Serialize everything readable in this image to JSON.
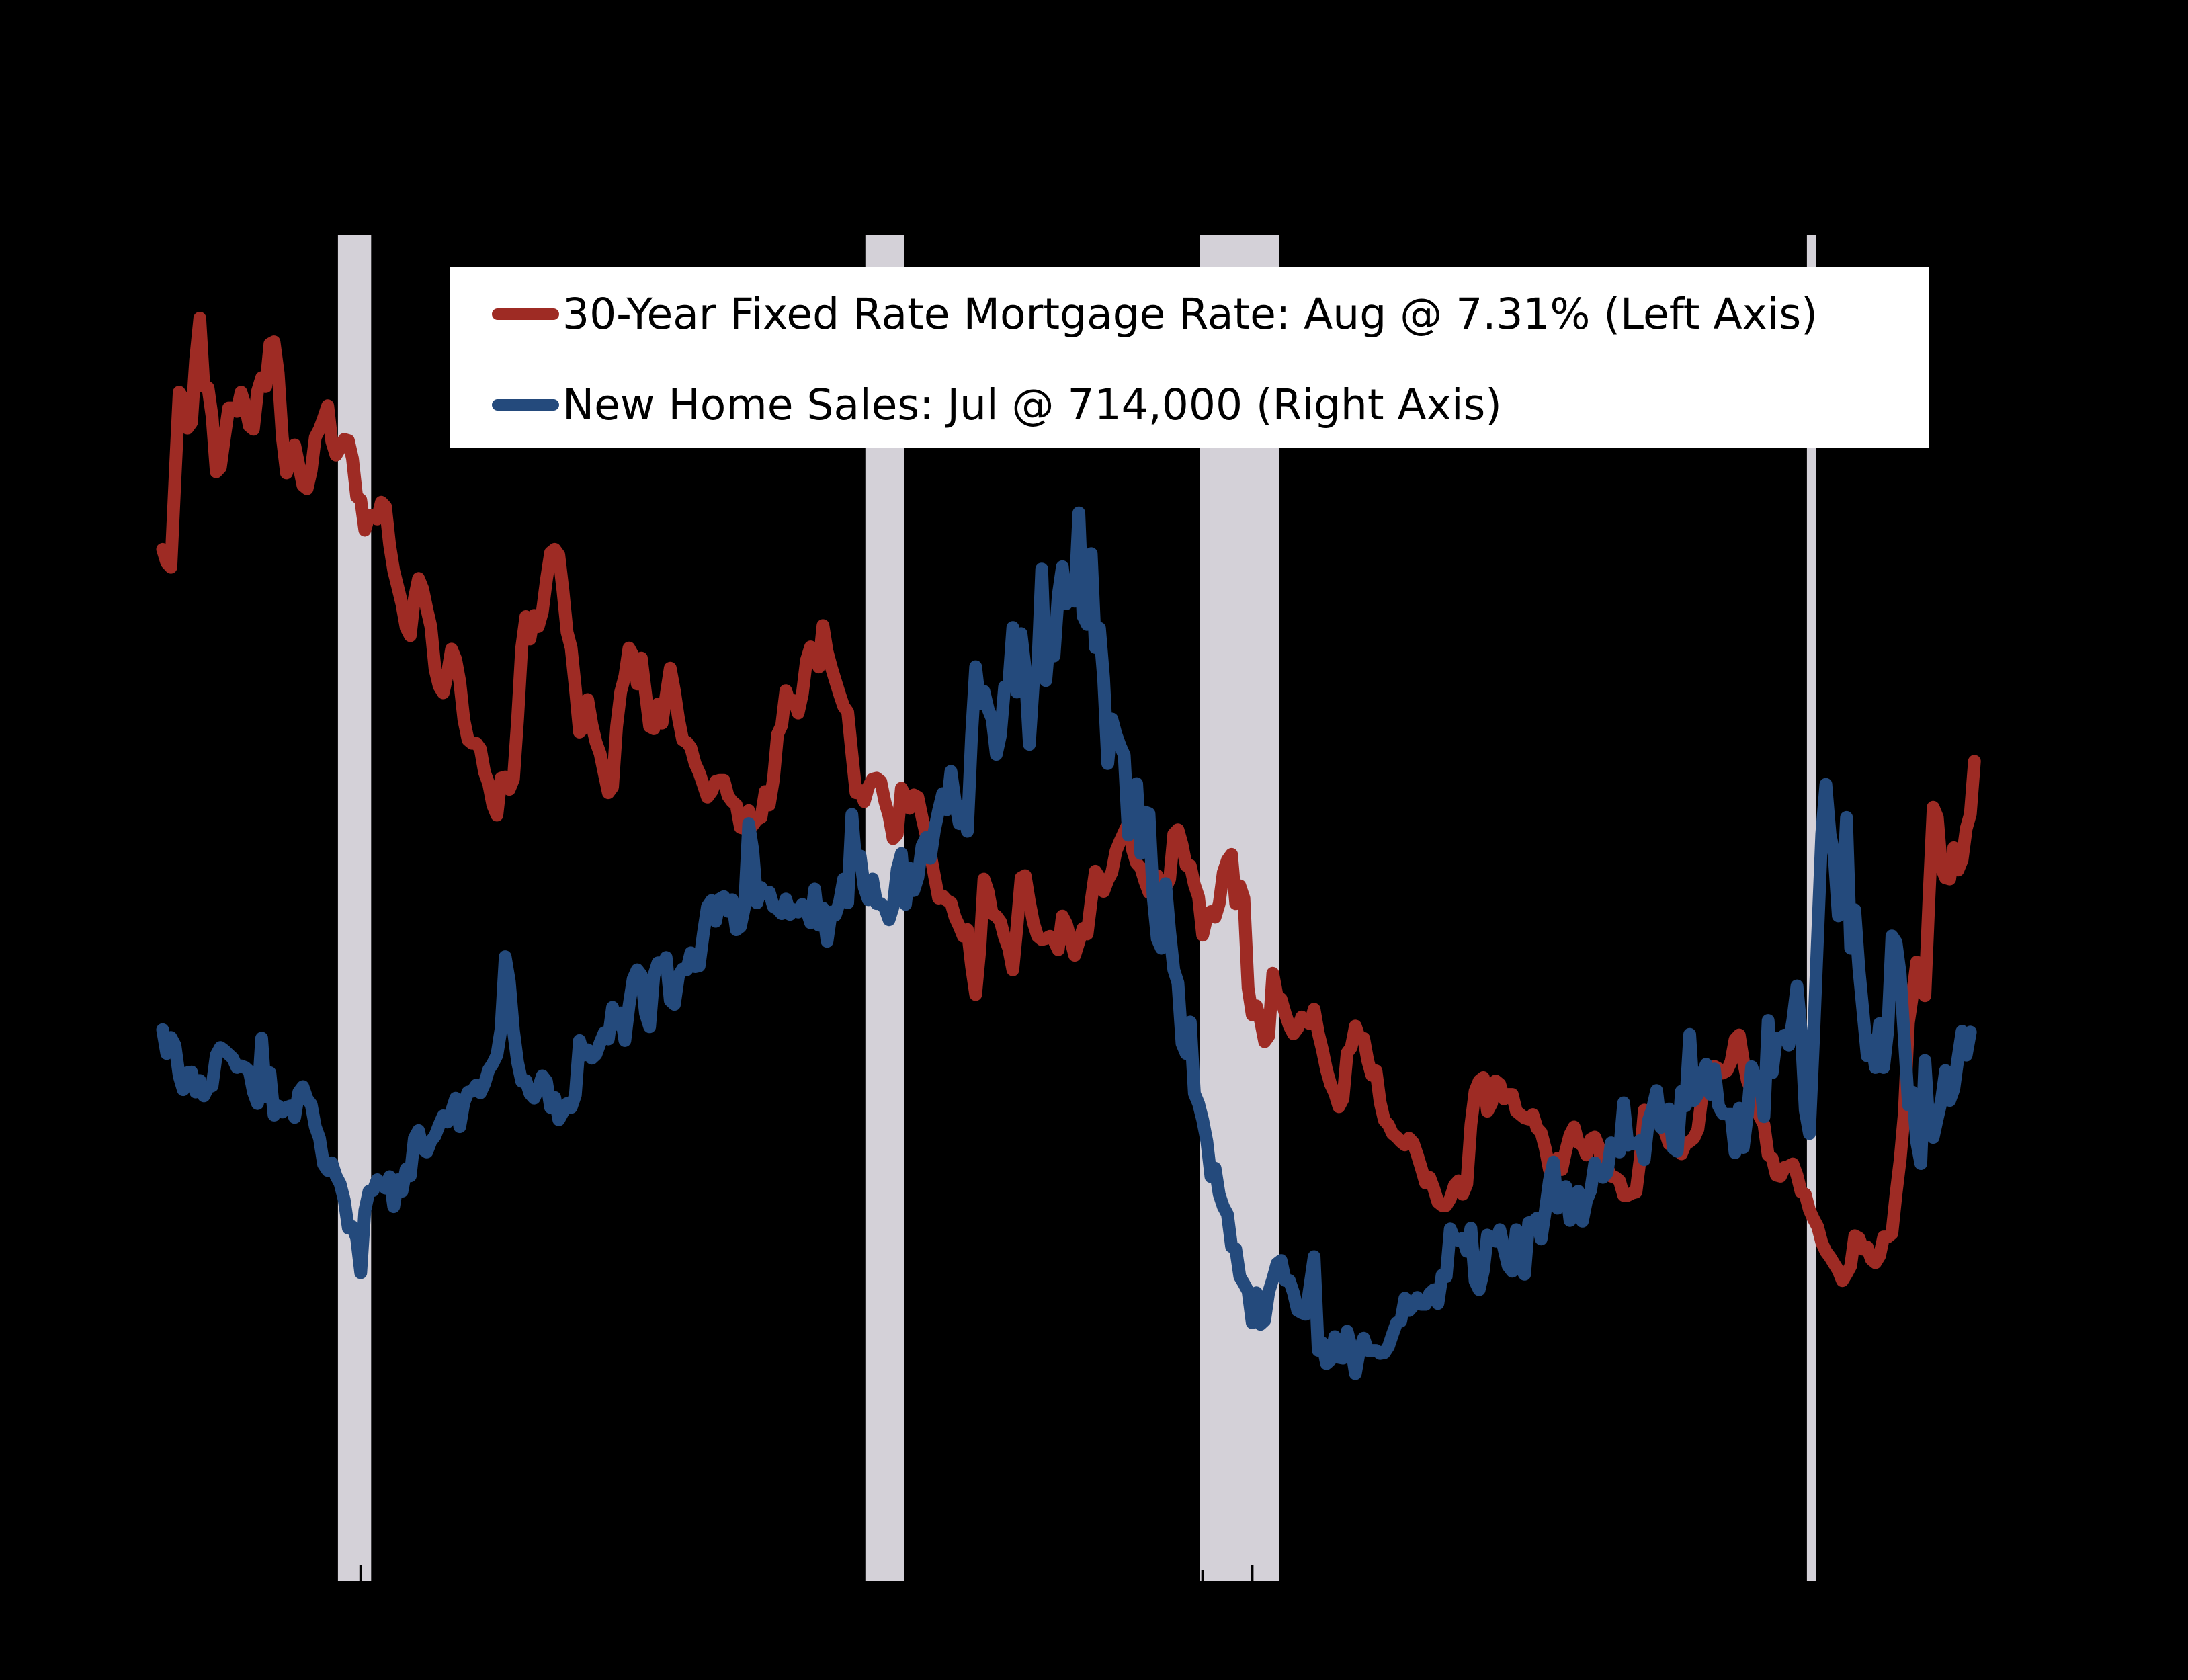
{
  "legend": {
    "items": [
      {
        "label": "30-Year Fixed Rate Mortgage Rate: Aug @ 7.31% (Left Axis)",
        "color": "#9e2b24"
      },
      {
        "label": "New Home Sales: Jul @ 714,000 (Right Axis)",
        "color": "#244a7c"
      }
    ]
  },
  "chart_data": {
    "type": "line",
    "title": "",
    "background_color": "#000000",
    "recession_band_color": "#d4d1d8",
    "tick_color": "#000000",
    "x_axis": {
      "start": 1987.0,
      "end": 2023.96,
      "ticks": "yearly",
      "tick_labels_visible": false
    },
    "left_axis": {
      "series": "30-Year Fixed Rate Mortgage Rate",
      "unit": "%",
      "range": [
        0,
        12
      ],
      "latest": {
        "month": "Aug",
        "value": 7.31
      }
    },
    "right_axis": {
      "series": "New Home Sales",
      "unit": "thousands, SAAR",
      "range": [
        0,
        1750
      ],
      "latest": {
        "month": "Jul",
        "value": 714000
      }
    },
    "recession_bands": [
      [
        1990.54,
        1991.21
      ],
      [
        2001.19,
        2001.97
      ],
      [
        2007.95,
        2009.54
      ],
      [
        2020.2,
        2020.39
      ]
    ],
    "series": [
      {
        "name": "30-Year Fixed Rate Mortgage Rate: Aug @ 7.31% (Left Axis)",
        "axis": "left",
        "color": "#9e2b24",
        "start": 1987.0,
        "freq": "monthly",
        "values": [
          9.2,
          9.08,
          9.04,
          9.83,
          10.6,
          10.54,
          10.28,
          10.33,
          10.89,
          11.26,
          10.65,
          10.64,
          10.38,
          9.89,
          9.93,
          10.2,
          10.46,
          10.46,
          10.43,
          10.6,
          10.48,
          10.3,
          10.27,
          10.61,
          10.73,
          10.65,
          11.03,
          11.05,
          10.77,
          10.2,
          9.88,
          9.99,
          10.13,
          9.95,
          9.77,
          9.74,
          9.9,
          10.2,
          10.27,
          10.37,
          10.48,
          10.16,
          10.04,
          10.1,
          10.18,
          10.17,
          10.01,
          9.67,
          9.64,
          9.37,
          9.5,
          9.5,
          9.47,
          9.62,
          9.58,
          9.24,
          9.01,
          8.86,
          8.71,
          8.5,
          8.43,
          8.76,
          8.94,
          8.85,
          8.67,
          8.51,
          8.13,
          7.98,
          7.92,
          8.09,
          8.31,
          8.22,
          8.02,
          7.68,
          7.5,
          7.47,
          7.47,
          7.42,
          7.21,
          7.11,
          6.92,
          6.83,
          7.16,
          7.17,
          7.06,
          7.15,
          7.68,
          8.32,
          8.6,
          8.4,
          8.61,
          8.51,
          8.64,
          8.93,
          9.17,
          9.2,
          9.15,
          8.83,
          8.46,
          8.32,
          7.96,
          7.57,
          7.61,
          7.86,
          7.64,
          7.48,
          7.38,
          7.2,
          7.03,
          7.08,
          7.62,
          7.93,
          8.07,
          8.32,
          8.25,
          8.0,
          8.23,
          7.92,
          7.62,
          7.6,
          7.82,
          7.65,
          7.9,
          8.14,
          7.94,
          7.69,
          7.5,
          7.48,
          7.43,
          7.29,
          7.21,
          7.1,
          6.99,
          7.04,
          7.13,
          7.14,
          7.14,
          7.0,
          6.95,
          6.92,
          6.72,
          6.71,
          6.87,
          6.74,
          6.79,
          6.81,
          7.04,
          6.92,
          7.15,
          7.55,
          7.63,
          7.94,
          7.82,
          7.85,
          7.74,
          7.91,
          8.21,
          8.33,
          8.24,
          8.15,
          8.52,
          8.29,
          8.15,
          8.03,
          7.91,
          7.8,
          7.75,
          7.38,
          7.03,
          7.05,
          6.95,
          7.08,
          7.15,
          7.16,
          7.13,
          6.95,
          6.82,
          6.62,
          6.66,
          7.07,
          7.0,
          6.89,
          7.01,
          6.99,
          6.81,
          6.65,
          6.49,
          6.29,
          6.09,
          6.11,
          6.07,
          6.05,
          5.92,
          5.84,
          5.75,
          5.81,
          5.48,
          5.23,
          5.63,
          6.26,
          6.15,
          5.95,
          5.93,
          5.88,
          5.74,
          5.64,
          5.45,
          5.83,
          6.27,
          6.29,
          6.06,
          5.87,
          5.75,
          5.72,
          5.73,
          5.75,
          5.71,
          5.63,
          5.93,
          5.86,
          5.72,
          5.58,
          5.7,
          5.82,
          5.77,
          6.07,
          6.33,
          6.27,
          6.15,
          6.25,
          6.32,
          6.51,
          6.6,
          6.68,
          6.76,
          6.52,
          6.4,
          6.36,
          6.24,
          6.14,
          6.22,
          6.29,
          6.16,
          6.18,
          6.26,
          6.66,
          6.7,
          6.57,
          6.38,
          6.38,
          6.21,
          6.1,
          5.76,
          5.92,
          5.97,
          5.92,
          6.04,
          6.32,
          6.43,
          6.48,
          6.04,
          6.2,
          6.09,
          5.29,
          5.05,
          5.13,
          5.0,
          4.81,
          4.86,
          5.42,
          5.22,
          5.19,
          5.06,
          4.95,
          4.88,
          4.93,
          5.03,
          4.99,
          4.97,
          5.1,
          4.89,
          4.74,
          4.56,
          4.43,
          4.35,
          4.23,
          4.3,
          4.71,
          4.76,
          4.95,
          4.84,
          4.84,
          4.64,
          4.51,
          4.55,
          4.27,
          4.11,
          4.07,
          3.99,
          3.96,
          3.92,
          3.89,
          3.95,
          3.91,
          3.8,
          3.68,
          3.55,
          3.6,
          3.5,
          3.38,
          3.35,
          3.35,
          3.41,
          3.53,
          3.57,
          3.45,
          3.54,
          4.07,
          4.37,
          4.46,
          4.49,
          4.19,
          4.26,
          4.46,
          4.43,
          4.3,
          4.34,
          4.34,
          4.19,
          4.16,
          4.13,
          4.12,
          4.16,
          4.04,
          4.0,
          3.86,
          3.67,
          3.71,
          3.77,
          3.67,
          3.84,
          3.98,
          4.05,
          3.91,
          3.89,
          3.8,
          3.94,
          3.96,
          3.87,
          3.66,
          3.69,
          3.61,
          3.6,
          3.57,
          3.44,
          3.44,
          3.46,
          3.47,
          3.77,
          4.2,
          4.15,
          4.17,
          4.2,
          4.05,
          4.01,
          3.9,
          3.97,
          3.88,
          3.81,
          3.9,
          3.92,
          3.95,
          4.03,
          4.33,
          4.44,
          4.47,
          4.59,
          4.57,
          4.53,
          4.55,
          4.63,
          4.83,
          4.87,
          4.64,
          4.46,
          4.37,
          4.27,
          4.14,
          4.07,
          3.8,
          3.77,
          3.62,
          3.61,
          3.69,
          3.7,
          3.72,
          3.62,
          3.47,
          3.45,
          3.31,
          3.23,
          3.16,
          3.02,
          2.94,
          2.89,
          2.83,
          2.77,
          2.68,
          2.74,
          2.81,
          3.08,
          3.06,
          2.96,
          2.98,
          2.87,
          2.84,
          2.9,
          3.07,
          3.07,
          3.1,
          3.45,
          3.76,
          4.17,
          4.98,
          5.23,
          5.52,
          5.41,
          5.22,
          6.11,
          6.9,
          6.81,
          6.36,
          6.27,
          6.26,
          6.54,
          6.34,
          6.43,
          6.71,
          6.84,
          7.31
        ]
      },
      {
        "name": "New Home Sales: Jul @ 714,000 (Right Axis)",
        "axis": "right",
        "color": "#244a7c",
        "start": 1987.0,
        "freq": "monthly",
        "values": [
          717,
          686,
          707,
          697,
          657,
          639,
          661,
          662,
          636,
          651,
          631,
          642,
          644,
          684,
          694,
          690,
          685,
          680,
          668,
          670,
          668,
          663,
          636,
          621,
          706,
          630,
          661,
          606,
          618,
          610,
          616,
          618,
          603,
          636,
          643,
          627,
          620,
          591,
          576,
          542,
          534,
          544,
          527,
          517,
          496,
          459,
          461,
          446,
          401,
          482,
          507,
          508,
          522,
          516,
          511,
          526,
          487,
          522,
          507,
          536,
          527,
          576,
          586,
          562,
          558,
          572,
          579,
          593,
          605,
          597,
          611,
          628,
          591,
          622,
          636,
          637,
          645,
          635,
          647,
          665,
          673,
          684,
          718,
          812,
          780,
          716,
          675,
          650,
          651,
          634,
          628,
          640,
          657,
          650,
          616,
          629,
          600,
          610,
          621,
          616,
          632,
          703,
          684,
          691,
          680,
          685,
          700,
          713,
          705,
          746,
          724,
          739,
          703,
          748,
          783,
          795,
          788,
          738,
          721,
          787,
          804,
          801,
          811,
          755,
          750,
          787,
          796,
          795,
          817,
          799,
          800,
          842,
          877,
          885,
          858,
          887,
          890,
          871,
          886,
          847,
          851,
          877,
          985,
          950,
          882,
          902,
          894,
          896,
          877,
          874,
          868,
          887,
          867,
          873,
          870,
          880,
          873,
          856,
          900,
          853,
          875,
          832,
          870,
          866,
          883,
          913,
          882,
          997,
          932,
          943,
          902,
          886,
          913,
          881,
          881,
          875,
          860,
          877,
          926,
          946,
          880,
          927,
          898,
          915,
          956,
          967,
          940,
          976,
          1002,
          1024,
          1003,
          1053,
          1015,
          985,
          1008,
          975,
          1099,
          1189,
          1141,
          1157,
          1134,
          1121,
          1075,
          1100,
          1163,
          1165,
          1240,
          1156,
          1232,
          1186,
          1088,
          1170,
          1184,
          1316,
          1171,
          1236,
          1203,
          1282,
          1319,
          1271,
          1285,
          1274,
          1389,
          1255,
          1244,
          1336,
          1214,
          1239,
          1174,
          1063,
          1121,
          1101,
          1086,
          1074,
          970,
          1001,
          1037,
          946,
          1000,
          998,
          890,
          835,
          823,
          907,
          845,
          795,
          778,
          699,
          686,
          727,
          634,
          621,
          600,
          572,
          526,
          537,
          503,
          487,
          477,
          435,
          432,
          396,
          387,
          377,
          336,
          375,
          334,
          339,
          376,
          393,
          413,
          417,
          391,
          391,
          375,
          352,
          349,
          347,
          384,
          422,
          300,
          310,
          283,
          288,
          318,
          291,
          290,
          325,
          304,
          270,
          300,
          316,
          300,
          300,
          300,
          296,
          297,
          305,
          321,
          336,
          338,
          368,
          352,
          358,
          369,
          360,
          360,
          374,
          379,
          361,
          398,
          396,
          458,
          445,
          443,
          446,
          429,
          459,
          390,
          379,
          403,
          450,
          446,
          442,
          457,
          432,
          410,
          403,
          457,
          408,
          399,
          466,
          467,
          472,
          445,
          481,
          521,
          545,
          485,
          508,
          513,
          469,
          502,
          507,
          468,
          495,
          508,
          544,
          531,
          525,
          531,
          570,
          566,
          558,
          622,
          567,
          570,
          568,
          573,
          548,
          599,
          615,
          638,
          590,
          606,
          614,
          563,
          559,
          637,
          618,
          711,
          625,
          633,
          659,
          672,
          633,
          666,
          618,
          608,
          607,
          607,
          557,
          615,
          564,
          607,
          669,
          654,
          656,
          604,
          729,
          661,
          706,
          706,
          710,
          697,
          730,
          774,
          716,
          612,
          582,
          704,
          840,
          972,
          1036,
          971,
          945,
          865,
          885,
          993,
          823,
          873,
          796,
          740,
          683,
          704,
          668,
          725,
          668,
          717,
          839,
          831,
          790,
          707,
          619,
          636,
          571,
          543,
          677,
          588,
          577,
          602,
          625,
          664,
          625,
          640,
          680,
          715,
          684,
          714
        ]
      }
    ]
  }
}
